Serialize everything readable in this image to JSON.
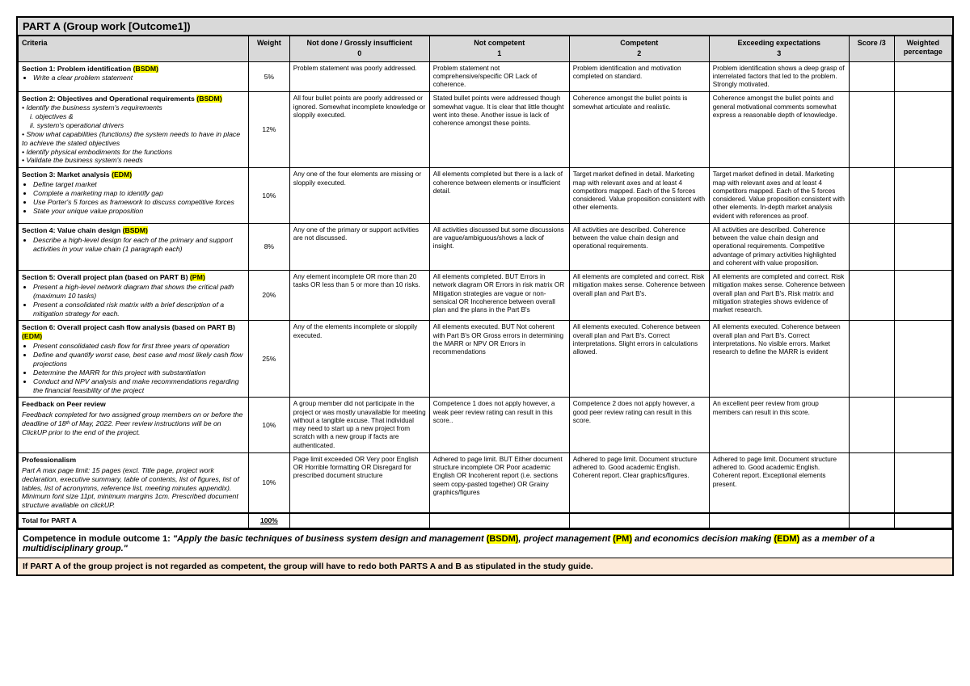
{
  "title": "PART A (Group work [Outcome1])",
  "headers": {
    "criteria": "Criteria",
    "weight": "Weight",
    "level0": "Not done / Grossly insufficient",
    "level0n": "0",
    "level1": "Not competent",
    "level1n": "1",
    "level2": "Competent",
    "level2n": "2",
    "level3": "Exceeding expectations",
    "level3n": "3",
    "score": "Score /3",
    "wp": "Weighted percentage"
  },
  "rows": [
    {
      "sec": "Section 1: Problem identification",
      "tag": "(BSDM)",
      "bullets": [
        "Write a clear problem statement"
      ],
      "weight": "5%",
      "l0": "Problem statement was poorly addressed.",
      "l1": "Problem statement not comprehensive/specific OR Lack of coherence.",
      "l2": "Problem identification and motivation completed on standard.",
      "l3": "Problem identification shows a deep grasp of interrelated factors that led to the problem. Strongly motivated."
    },
    {
      "sec": "Section 2: Objectives and Operational requirements",
      "tag": "(BSDM)",
      "extra": [
        "Identify the business system's requirements",
        "i. objectives &",
        "ii. system's operational drivers",
        "Show what capabilities (functions) the system needs to have in place to achieve the stated objectives",
        "Identify physical embodiments for the functions",
        "Validate the business system's needs"
      ],
      "weight": "12%",
      "l0": "All four bullet points are poorly addressed or ignored. Somewhat incomplete knowledge or sloppily executed.",
      "l1": "Stated bullet points were addressed though somewhat vague. It is clear that little thought went into these. Another issue is lack of coherence amongst these points.",
      "l2": "Coherence amongst the bullet points is somewhat articulate and realistic.",
      "l3": "Coherence amongst the bullet points and general motivational comments somewhat express a reasonable depth of knowledge."
    },
    {
      "sec": "Section 3: Market analysis",
      "tag": "(EDM)",
      "bullets": [
        "Define target market",
        "Complete a marketing map to identify gap",
        "Use Porter's 5 forces as framework to discuss competitive forces",
        "State your unique value proposition"
      ],
      "weight": "10%",
      "l0": "Any one of the four elements are missing or sloppily executed.",
      "l1": "All elements completed but there is a lack of coherence between elements or insufficient detail.",
      "l2": "Target market defined in detail. Marketing map with relevant axes and at least 4 competitors mapped. Each of the 5 forces considered. Value proposition consistent with other elements.",
      "l3": "Target market defined in detail. Marketing map with relevant axes and at least 4 competitors mapped. Each of the 5 forces considered. Value proposition consistent with other elements. In-depth market analysis evident with references as proof."
    },
    {
      "sec": "Section 4: Value chain design",
      "tag": "(BSDM)",
      "bullets": [
        "Describe a high-level design for each of the primary and support activities in your value chain (1 paragraph each)"
      ],
      "weight": "8%",
      "l0": "Any one of the primary or support activities are not discussed.",
      "l1": "All activities discussed but some discussions are vague/ambiguous/shows a lack of insight.",
      "l2": "All activities are described. Coherence between the value chain design and operational requirements.",
      "l3": "All activities are described. Coherence between the value chain design and operational requirements. Competitive advantage of primary activities highlighted and coherent with value proposition."
    },
    {
      "sec": "Section 5: Overall project plan (based on PART B)",
      "tag": "(PM)",
      "bullets": [
        "Present a high-level network diagram that shows the critical path (maximum 10 tasks)",
        "Present a consolidated risk matrix with a brief description of a mitigation strategy for each."
      ],
      "weight": "20%",
      "l0": "Any element incomplete OR more than 20 tasks OR less than 5 or more than 10 risks.",
      "l1": "All elements completed. BUT Errors in network diagram OR Errors in risk matrix OR Mitigation strategies are vague or non-sensical OR Incoherence between overall plan and the plans in the Part B's",
      "l2": "All elements are completed and correct. Risk mitigation makes sense. Coherence between overall plan and Part B's.",
      "l3": "All elements are completed and correct. Risk mitigation makes sense. Coherence between overall plan and Part B's. Risk matrix and mitigation strategies shows evidence of market research."
    },
    {
      "sec": "Section 6: Overall project cash flow analysis (based on PART B)",
      "tag": "(EDM)",
      "bullets": [
        "Present consolidated cash flow for first three years of operation",
        "Define and quantify worst case, best case and most likely cash flow projections",
        "Determine the MARR for this project with substantiation",
        "Conduct and NPV analysis and make recommendations regarding the financial feasibility of the project"
      ],
      "weight": "25%",
      "l0": "Any of the elements incomplete or sloppily executed.",
      "l1": "All elements executed. BUT Not coherent with Part B's OR Gross errors in determining the MARR or NPV OR Errors in recommendations",
      "l2": "All elements executed. Coherence between overall plan and Part B's. Correct interpretations. Slight errors in calculations allowed.",
      "l3": "All elements executed. Coherence between overall plan and Part B's. Correct interpretations. No visible errors. Market research to define the MARR is evident"
    },
    {
      "sec": "Feedback on Peer review",
      "tag": "",
      "para": "Feedback completed for two assigned group members on or before the deadline of 18ᵗʰ of May, 2022. Peer review instructions will be on ClickUP prior to the end of the project.",
      "weight": "10%",
      "l0": "A group member did not participate in the project or was mostly unavailable for meeting without a tangible excuse. That individual may need to start up a new project from scratch with a new group if facts are authenticated.",
      "l1": "Competence 1 does not apply however, a weak peer review rating can result in this score..",
      "l2": "Competence 2 does not apply however, a good peer review rating can result in this score.",
      "l3": "An excellent peer review from group members can result in this score."
    },
    {
      "sec": "Professionalism",
      "tag": "",
      "para": "Part A max page limit: 15 pages (excl. Title page, project work declaration, executive summary, table of contents, list of figures, list of tables, list of acronymns, reference list, meeting minutes appendix). Minimum font size 11pt, minimum margins 1cm. Prescribed document structure available on clickUP.",
      "weight": "10%",
      "l0": "Page limit exceeded OR Very poor English OR Horrible formatting OR Disregard for prescribed document structure",
      "l1": "Adhered to page limit. BUT Either document structure incomplete OR Poor academic English OR Incoherent report (i.e. sections seem copy-pasted together) OR Grainy graphics/figures",
      "l2": "Adhered to page limit. Document structure adhered to. Good academic English. Coherent report. Clear graphics/figures.",
      "l3": "Adhered to page limit. Document structure adhered to. Good academic English. Coherent report. Exceptional elements present."
    }
  ],
  "total": {
    "label": "Total for PART A",
    "weight": "100%"
  },
  "footer1_lead": "Competence in module outcome 1: ",
  "footer1_body_a": "\"Apply the basic techniques of business system design and management ",
  "footer1_b": "(BSDM)",
  "footer1_body_c": ", project management ",
  "footer1_d": "(PM)",
  "footer1_body_e": " and economics decision making ",
  "footer1_f": "(EDM)",
  "footer1_body_g": " as a member of a multidisciplinary group.\"",
  "footer2": "If PART A of the group project is not regarded as competent, the group will have to redo both PARTS A and B as stipulated in the study guide."
}
